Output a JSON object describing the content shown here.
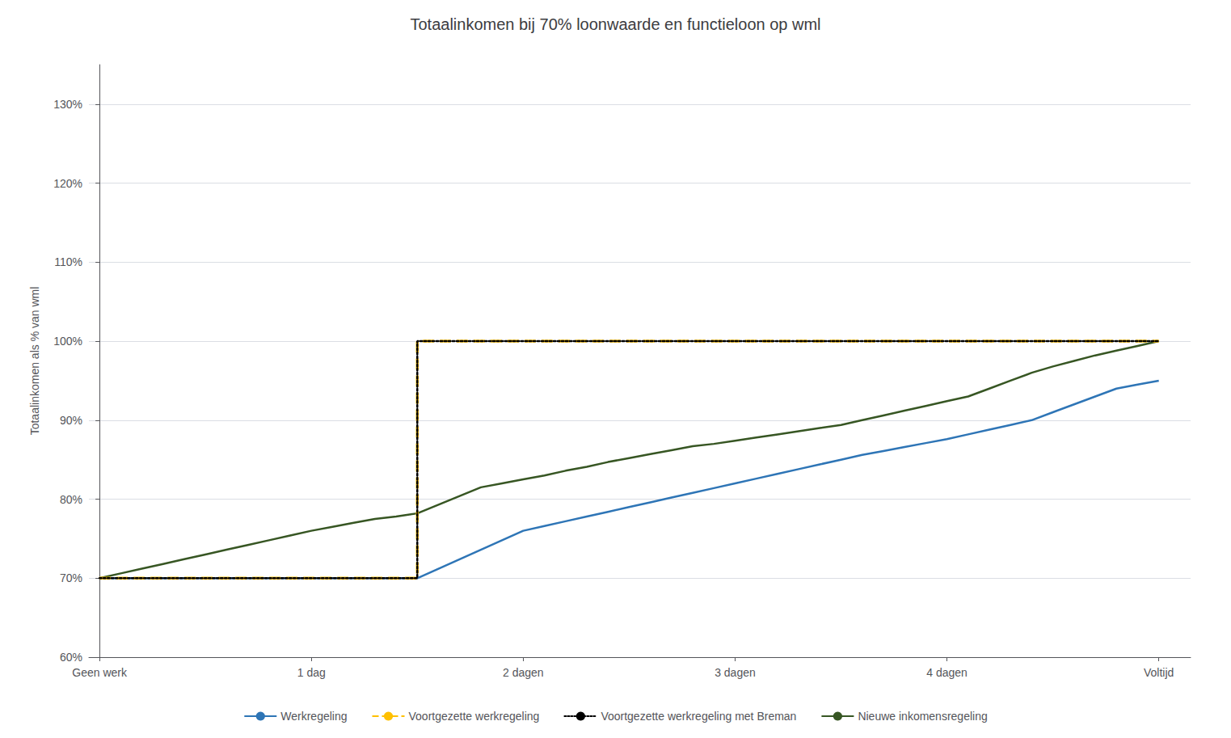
{
  "chart_data": {
    "type": "line",
    "title": "Totaalinkomen bij 70% loonwaarde en functieloon op wml",
    "ylabel": "Totaalinkomen als % van wml",
    "xlim": [
      -0.05,
      5.15
    ],
    "xticks": [
      {
        "value": 0,
        "label": "Geen werk"
      },
      {
        "value": 1,
        "label": "1 dag"
      },
      {
        "value": 2,
        "label": "2 dagen"
      },
      {
        "value": 3,
        "label": "3 dagen"
      },
      {
        "value": 4,
        "label": "4 dagen"
      },
      {
        "value": 5,
        "label": "Voltijd"
      }
    ],
    "ylim": [
      0.6,
      1.35
    ],
    "yticks": [
      {
        "value": 0.6,
        "label": "60%"
      },
      {
        "value": 0.7,
        "label": "70%"
      },
      {
        "value": 0.8,
        "label": "80%"
      },
      {
        "value": 0.9,
        "label": "90%"
      },
      {
        "value": 1.0,
        "label": "100%"
      },
      {
        "value": 1.1,
        "label": "110%"
      },
      {
        "value": 1.2,
        "label": "120%"
      },
      {
        "value": 1.3,
        "label": "130%"
      }
    ],
    "grid": true,
    "legend": "bottom",
    "series": [
      {
        "name": "Werkregeling",
        "color": "#2E75B6",
        "line_style": "solid",
        "x": [
          0,
          0.1,
          0.2,
          0.3,
          0.4,
          0.5,
          0.6,
          0.7,
          0.8,
          0.9,
          1.0,
          1.1,
          1.2,
          1.3,
          1.4,
          1.5,
          1.5,
          1.6,
          1.7,
          1.8,
          1.9,
          2.0,
          2.1,
          2.2,
          2.3,
          2.4,
          2.5,
          2.6,
          2.7,
          2.8,
          2.9,
          3.0,
          3.1,
          3.2,
          3.3,
          3.4,
          3.5,
          3.6,
          3.7,
          3.8,
          3.9,
          4.0,
          4.1,
          4.2,
          4.3,
          4.4,
          4.5,
          4.6,
          4.7,
          4.8,
          4.9,
          5.0
        ],
        "values": [
          0.7,
          0.7,
          0.7,
          0.7,
          0.7,
          0.7,
          0.7,
          0.7,
          0.7,
          0.7,
          0.7,
          0.7,
          0.7,
          0.7,
          0.7,
          0.7,
          0.7,
          0.712,
          0.724,
          0.736,
          0.748,
          0.76,
          0.766,
          0.772,
          0.778,
          0.784,
          0.79,
          0.796,
          0.802,
          0.808,
          0.814,
          0.82,
          0.826,
          0.832,
          0.838,
          0.844,
          0.85,
          0.856,
          0.861,
          0.866,
          0.871,
          0.876,
          0.882,
          0.888,
          0.894,
          0.9,
          0.91,
          0.92,
          0.93,
          0.94,
          0.945,
          0.95
        ]
      },
      {
        "name": "Voortgezette werkregeling",
        "color": "#FFC000",
        "line_style": "dashed",
        "x": [
          0,
          0.1,
          0.2,
          0.3,
          0.4,
          0.5,
          0.6,
          0.7,
          0.8,
          0.9,
          1.0,
          1.1,
          1.2,
          1.3,
          1.4,
          1.5,
          1.5,
          2.0,
          2.5,
          3.0,
          3.5,
          4.0,
          4.5,
          5.0
        ],
        "values": [
          0.7,
          0.7,
          0.7,
          0.7,
          0.7,
          0.7,
          0.7,
          0.7,
          0.7,
          0.7,
          0.7,
          0.7,
          0.7,
          0.7,
          0.7,
          0.7,
          1.0,
          1.0,
          1.0,
          1.0,
          1.0,
          1.0,
          1.0,
          1.0
        ]
      },
      {
        "name": "Voortgezette werkregeling met Breman",
        "color": "#000000",
        "line_style": "dotted",
        "x": [
          0,
          0.1,
          0.2,
          0.3,
          0.4,
          0.5,
          0.6,
          0.7,
          0.8,
          0.9,
          1.0,
          1.1,
          1.2,
          1.3,
          1.4,
          1.5,
          1.5,
          2.0,
          2.5,
          3.0,
          3.5,
          4.0,
          4.5,
          5.0
        ],
        "values": [
          0.7,
          0.7,
          0.7,
          0.7,
          0.7,
          0.7,
          0.7,
          0.7,
          0.7,
          0.7,
          0.7,
          0.7,
          0.7,
          0.7,
          0.7,
          0.7,
          1.0,
          1.0,
          1.0,
          1.0,
          1.0,
          1.0,
          1.0,
          1.0
        ]
      },
      {
        "name": "Nieuwe inkomensregeling",
        "color": "#375623",
        "line_style": "solid",
        "x": [
          0,
          0.1,
          0.2,
          0.3,
          0.4,
          0.5,
          0.6,
          0.7,
          0.8,
          0.9,
          1.0,
          1.1,
          1.2,
          1.3,
          1.4,
          1.5,
          1.6,
          1.7,
          1.8,
          1.9,
          2.0,
          2.1,
          2.2,
          2.3,
          2.4,
          2.5,
          2.6,
          2.7,
          2.8,
          2.9,
          3.0,
          3.1,
          3.2,
          3.3,
          3.4,
          3.5,
          3.6,
          3.7,
          3.8,
          3.9,
          4.0,
          4.1,
          4.2,
          4.3,
          4.4,
          4.5,
          4.6,
          4.7,
          4.8,
          4.9,
          5.0
        ],
        "values": [
          0.7,
          0.706,
          0.712,
          0.718,
          0.724,
          0.73,
          0.736,
          0.742,
          0.748,
          0.754,
          0.76,
          0.765,
          0.77,
          0.775,
          0.778,
          0.782,
          0.793,
          0.804,
          0.815,
          0.82,
          0.825,
          0.83,
          0.836,
          0.841,
          0.847,
          0.852,
          0.857,
          0.862,
          0.867,
          0.87,
          0.874,
          0.878,
          0.882,
          0.886,
          0.89,
          0.894,
          0.9,
          0.906,
          0.912,
          0.918,
          0.924,
          0.93,
          0.94,
          0.95,
          0.96,
          0.968,
          0.975,
          0.982,
          0.988,
          0.994,
          1.0
        ]
      }
    ]
  }
}
